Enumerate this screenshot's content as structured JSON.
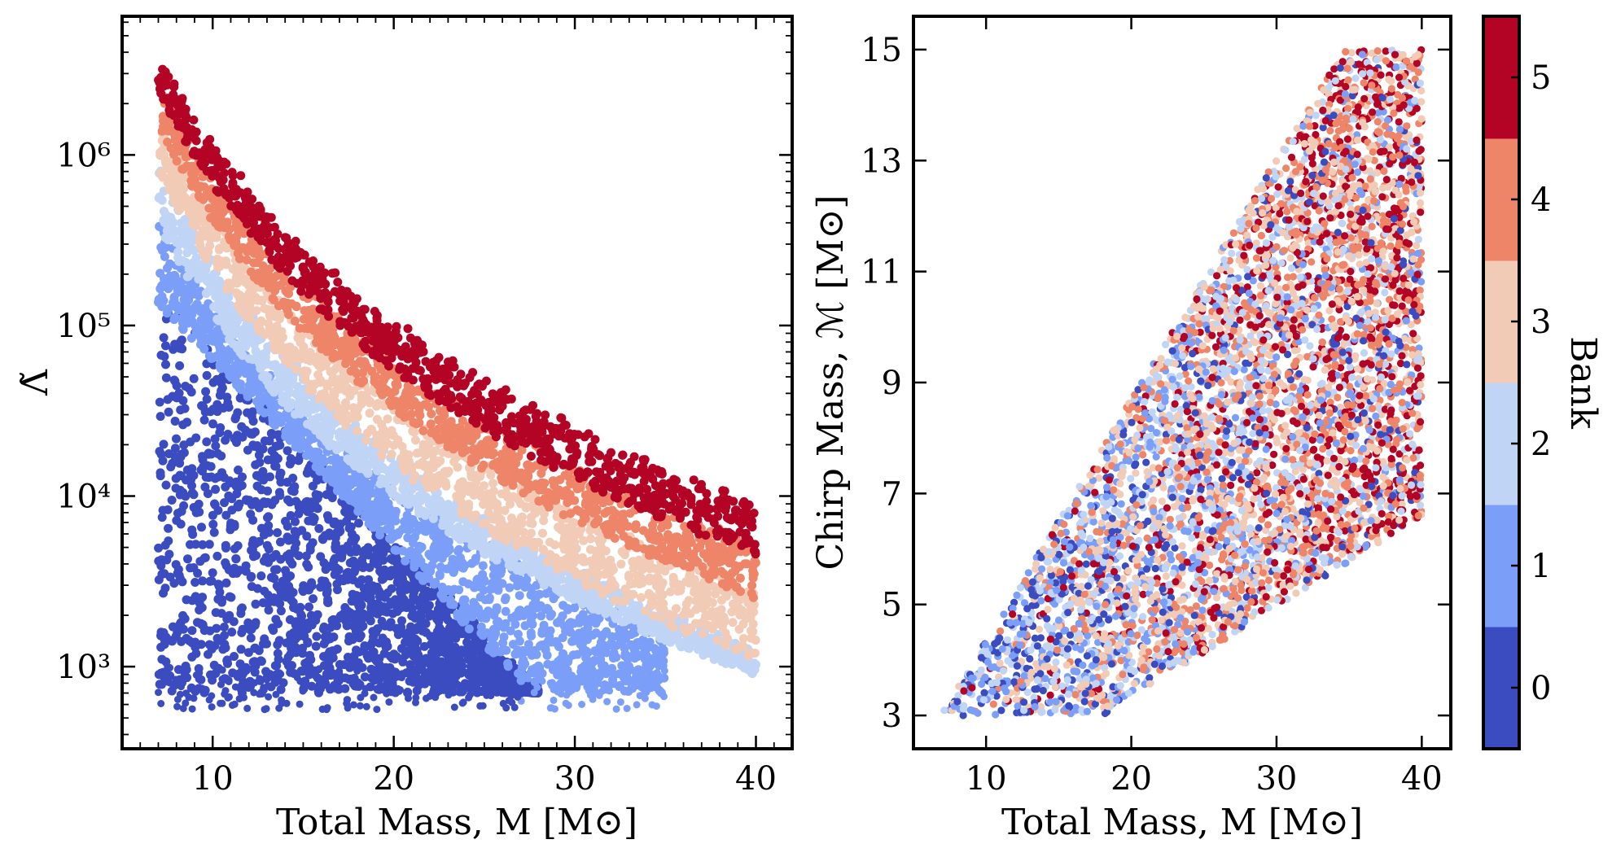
{
  "chart_data": [
    {
      "type": "scatter",
      "panel": "left",
      "xlabel": "Total Mass, M [M⊙]",
      "ylabel": "Λ̃",
      "xlim": [
        5,
        42
      ],
      "ylim": [
        330,
        6500000
      ],
      "yscale": "log",
      "xticks": [
        10,
        20,
        30,
        40
      ],
      "xtick_labels": [
        "10",
        "20",
        "30",
        "40"
      ],
      "yticks": [
        1000,
        10000,
        100000,
        1000000
      ],
      "ytick_labels": [
        "10³",
        "10⁴",
        "10⁵",
        "10⁶"
      ],
      "color_by": "Bank",
      "bands": [
        {
          "bank": 0,
          "x_range": [
            7,
            28
          ],
          "upper_at_x7": 150000,
          "upper_at_x28": 700,
          "lower": 700
        },
        {
          "bank": 1,
          "x_range": [
            7,
            35
          ],
          "upper_at_x7": 430000,
          "upper_at_x40": 1000,
          "lower": 700
        },
        {
          "bank": 2,
          "x_range": [
            7,
            40
          ],
          "upper_at_x7": 930000,
          "upper_at_x40": 1200,
          "lower": 900
        },
        {
          "bank": 3,
          "x_range": [
            7,
            40
          ],
          "upper_at_x7": 1700000,
          "upper_at_x40": 2800,
          "lower": 1000
        },
        {
          "bank": 4,
          "x_range": [
            7,
            40
          ],
          "upper_at_x7": 2700000,
          "upper_at_x40": 5000,
          "lower": 1500
        },
        {
          "bank": 5,
          "x_range": [
            7,
            40
          ],
          "upper_at_x7": 4000000,
          "upper_at_x40": 9000,
          "lower": 2200
        }
      ]
    },
    {
      "type": "scatter",
      "panel": "right",
      "xlabel": "Total Mass, M [M⊙]",
      "ylabel": "Chirp Mass, ℳ [M⊙]",
      "xlim": [
        5,
        42
      ],
      "ylim": [
        2.4,
        15.6
      ],
      "xticks": [
        10,
        20,
        30,
        40
      ],
      "xtick_labels": [
        "10",
        "20",
        "30",
        "40"
      ],
      "yticks": [
        3,
        5,
        7,
        9,
        11,
        13,
        15
      ],
      "ytick_labels": [
        "3",
        "5",
        "7",
        "9",
        "11",
        "13",
        "15"
      ],
      "region_vertices": [
        [
          6.9,
          3.0
        ],
        [
          18.0,
          3.0
        ],
        [
          40.0,
          6.6
        ],
        [
          40.0,
          15.0
        ],
        [
          34.5,
          15.0
        ]
      ],
      "color_by": "Bank",
      "bank_trend": "low banks concentrated at low total mass, high banks at high total mass"
    }
  ],
  "colorbar": {
    "label": "Bank",
    "ticks": [
      "0",
      "1",
      "2",
      "3",
      "4",
      "5"
    ],
    "colors": [
      "#3b4cc0",
      "#7b9ff9",
      "#c0d4f5",
      "#f2cbb7",
      "#ee8468",
      "#b40426"
    ]
  }
}
